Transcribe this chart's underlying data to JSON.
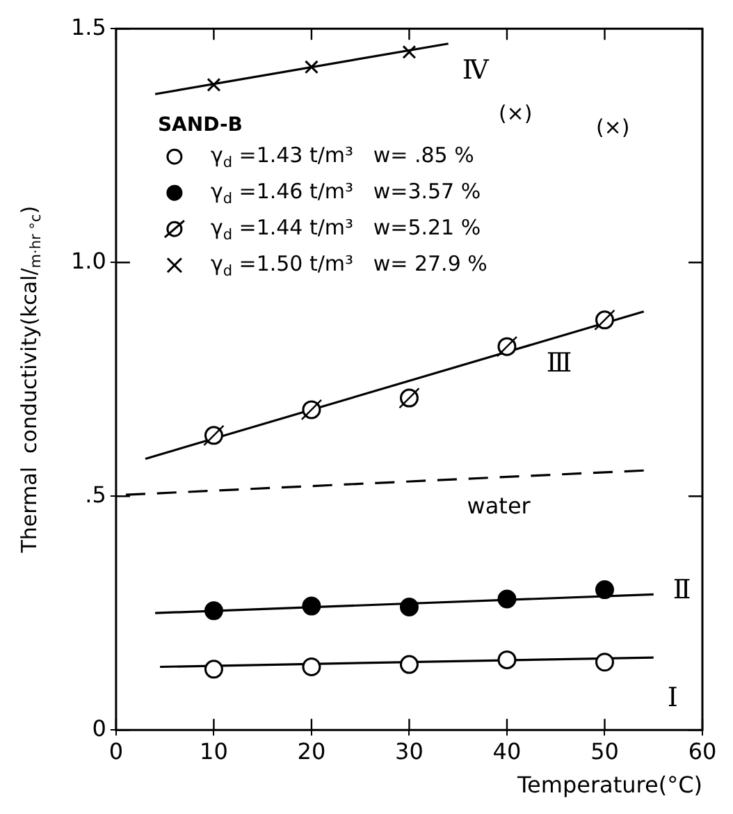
{
  "chart_data": {
    "type": "scatter",
    "xlabel": "Temperature(°C)",
    "ylabel": "Thermal  conductivity(kcal/$_{m·hr °c}$)",
    "legend_title": "SAND-B",
    "legend": "top left",
    "xlim": [
      0,
      60
    ],
    "xticks": [
      0,
      10,
      20,
      30,
      40,
      50,
      60
    ],
    "ylim": [
      0,
      1.5
    ],
    "yticks": [
      0,
      {
        "value": 0.5,
        "label": ".5"
      },
      {
        "value": 1,
        "label": "1.0"
      },
      {
        "value": 1.5,
        "label": "1.5"
      }
    ],
    "grid": false,
    "series": [
      {
        "name": "γ$_{d}$ =1.43 t/m³   w= .85 %",
        "type": "scatter",
        "marker": "circle",
        "color": "#000000",
        "x": [
          10,
          20,
          30,
          40,
          50
        ],
        "values": [
          0.13,
          0.135,
          0.14,
          0.15,
          0.145
        ]
      },
      {
        "name": "γ$_{d}$ =1.46 t/m³   w=3.57 %",
        "type": "scatter",
        "marker": "circle",
        "color": "#000000",
        "x": [
          10,
          20,
          30,
          40,
          50
        ],
        "values": [
          0.255,
          0.265,
          0.263,
          0.28,
          0.3
        ]
      },
      {
        "name": "γ$_{d}$ =1.44 t/m³   w=5.21 %",
        "type": "scatter",
        "marker": "circle",
        "color": "#000000",
        "x": [
          10,
          20,
          30,
          40,
          50
        ],
        "values": [
          0.63,
          0.685,
          0.71,
          0.82,
          0.877
        ]
      },
      {
        "name": "γ$_{d}$ =1.50 t/m³   w= 27.9 %",
        "type": "scatter",
        "marker": "cross",
        "color": "#000000",
        "x": [
          10,
          20,
          30
        ],
        "values": [
          1.38,
          1.418,
          1.45
        ]
      },
      {
        "name": "Ⅰ",
        "type": "line",
        "marker": "none",
        "line_style": "solid",
        "color": "#000000",
        "x": [
          4.5,
          55
        ],
        "values": [
          0.135,
          0.155
        ]
      },
      {
        "name": "Ⅱ",
        "type": "line",
        "marker": "none",
        "line_style": "solid",
        "color": "#000000",
        "x": [
          4,
          55
        ],
        "values": [
          0.25,
          0.29
        ]
      },
      {
        "name": "Ⅲ",
        "type": "line",
        "marker": "none",
        "line_style": "solid",
        "color": "#000000",
        "x": [
          3,
          54
        ],
        "values": [
          0.58,
          0.895
        ]
      },
      {
        "name": "Ⅳ",
        "type": "line",
        "marker": "none",
        "line_style": "solid",
        "color": "#000000",
        "x": [
          4,
          34
        ],
        "values": [
          1.36,
          1.468
        ]
      },
      {
        "name": "water",
        "type": "line",
        "marker": "none",
        "line_style": "dashed",
        "color": "#000000",
        "x": [
          1,
          54
        ],
        "values": [
          0.503,
          0.555
        ]
      }
    ],
    "annotations": [
      "(×)",
      "(×)"
    ]
  }
}
